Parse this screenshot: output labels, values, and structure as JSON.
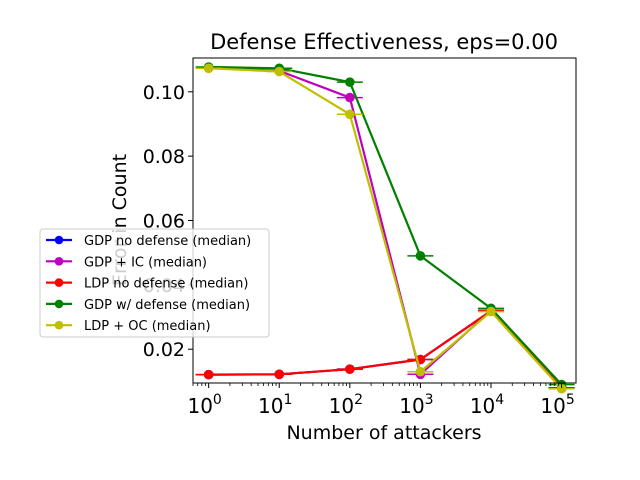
{
  "chart_data": {
    "type": "line",
    "title": "Defense Effectiveness, eps=0.00",
    "xlabel": "Number of attackers",
    "ylabel": "Error in Count",
    "x_scale": "log",
    "x": [
      1,
      10,
      100,
      1000,
      10000,
      100000
    ],
    "xlim": [
      0.6,
      160000
    ],
    "ylim": [
      0.0095,
      0.1105
    ],
    "x_ticks": [
      {
        "value": 1,
        "base": "10",
        "exp": "0"
      },
      {
        "value": 10,
        "base": "10",
        "exp": "1"
      },
      {
        "value": 100,
        "base": "10",
        "exp": "2"
      },
      {
        "value": 1000,
        "base": "10",
        "exp": "3"
      },
      {
        "value": 10000,
        "base": "10",
        "exp": "4"
      },
      {
        "value": 100000,
        "base": "10",
        "exp": "5"
      }
    ],
    "y_ticks": [
      {
        "value": 0.02,
        "label": "0.02"
      },
      {
        "value": 0.04,
        "label": "0.04"
      },
      {
        "value": 0.06,
        "label": "0.06"
      },
      {
        "value": 0.08,
        "label": "0.08"
      },
      {
        "value": 0.1,
        "label": "0.10"
      }
    ],
    "grid": false,
    "legend_position": "center-left",
    "series": [
      {
        "name": "GDP no defense (median)",
        "color": "#0000ff",
        "values": [
          0.0121,
          0.0122,
          0.0138,
          0.0168,
          0.0319,
          0.008
        ]
      },
      {
        "name": "GDP + IC (median)",
        "color": "#bf00bf",
        "values": [
          0.1075,
          0.1065,
          0.0982,
          0.0122,
          0.0321,
          0.008
        ]
      },
      {
        "name": "LDP no defense (median)",
        "color": "#ff0000",
        "values": [
          0.0121,
          0.0122,
          0.0138,
          0.0168,
          0.0319,
          0.008
        ]
      },
      {
        "name": "GDP w/ defense (median)",
        "color": "#008000",
        "values": [
          0.1077,
          0.1073,
          0.103,
          0.049,
          0.0327,
          0.009
        ]
      },
      {
        "name": "LDP + OC (median)",
        "color": "#bfbf00",
        "values": [
          0.1073,
          0.1063,
          0.093,
          0.013,
          0.0317,
          0.0077
        ]
      }
    ]
  }
}
